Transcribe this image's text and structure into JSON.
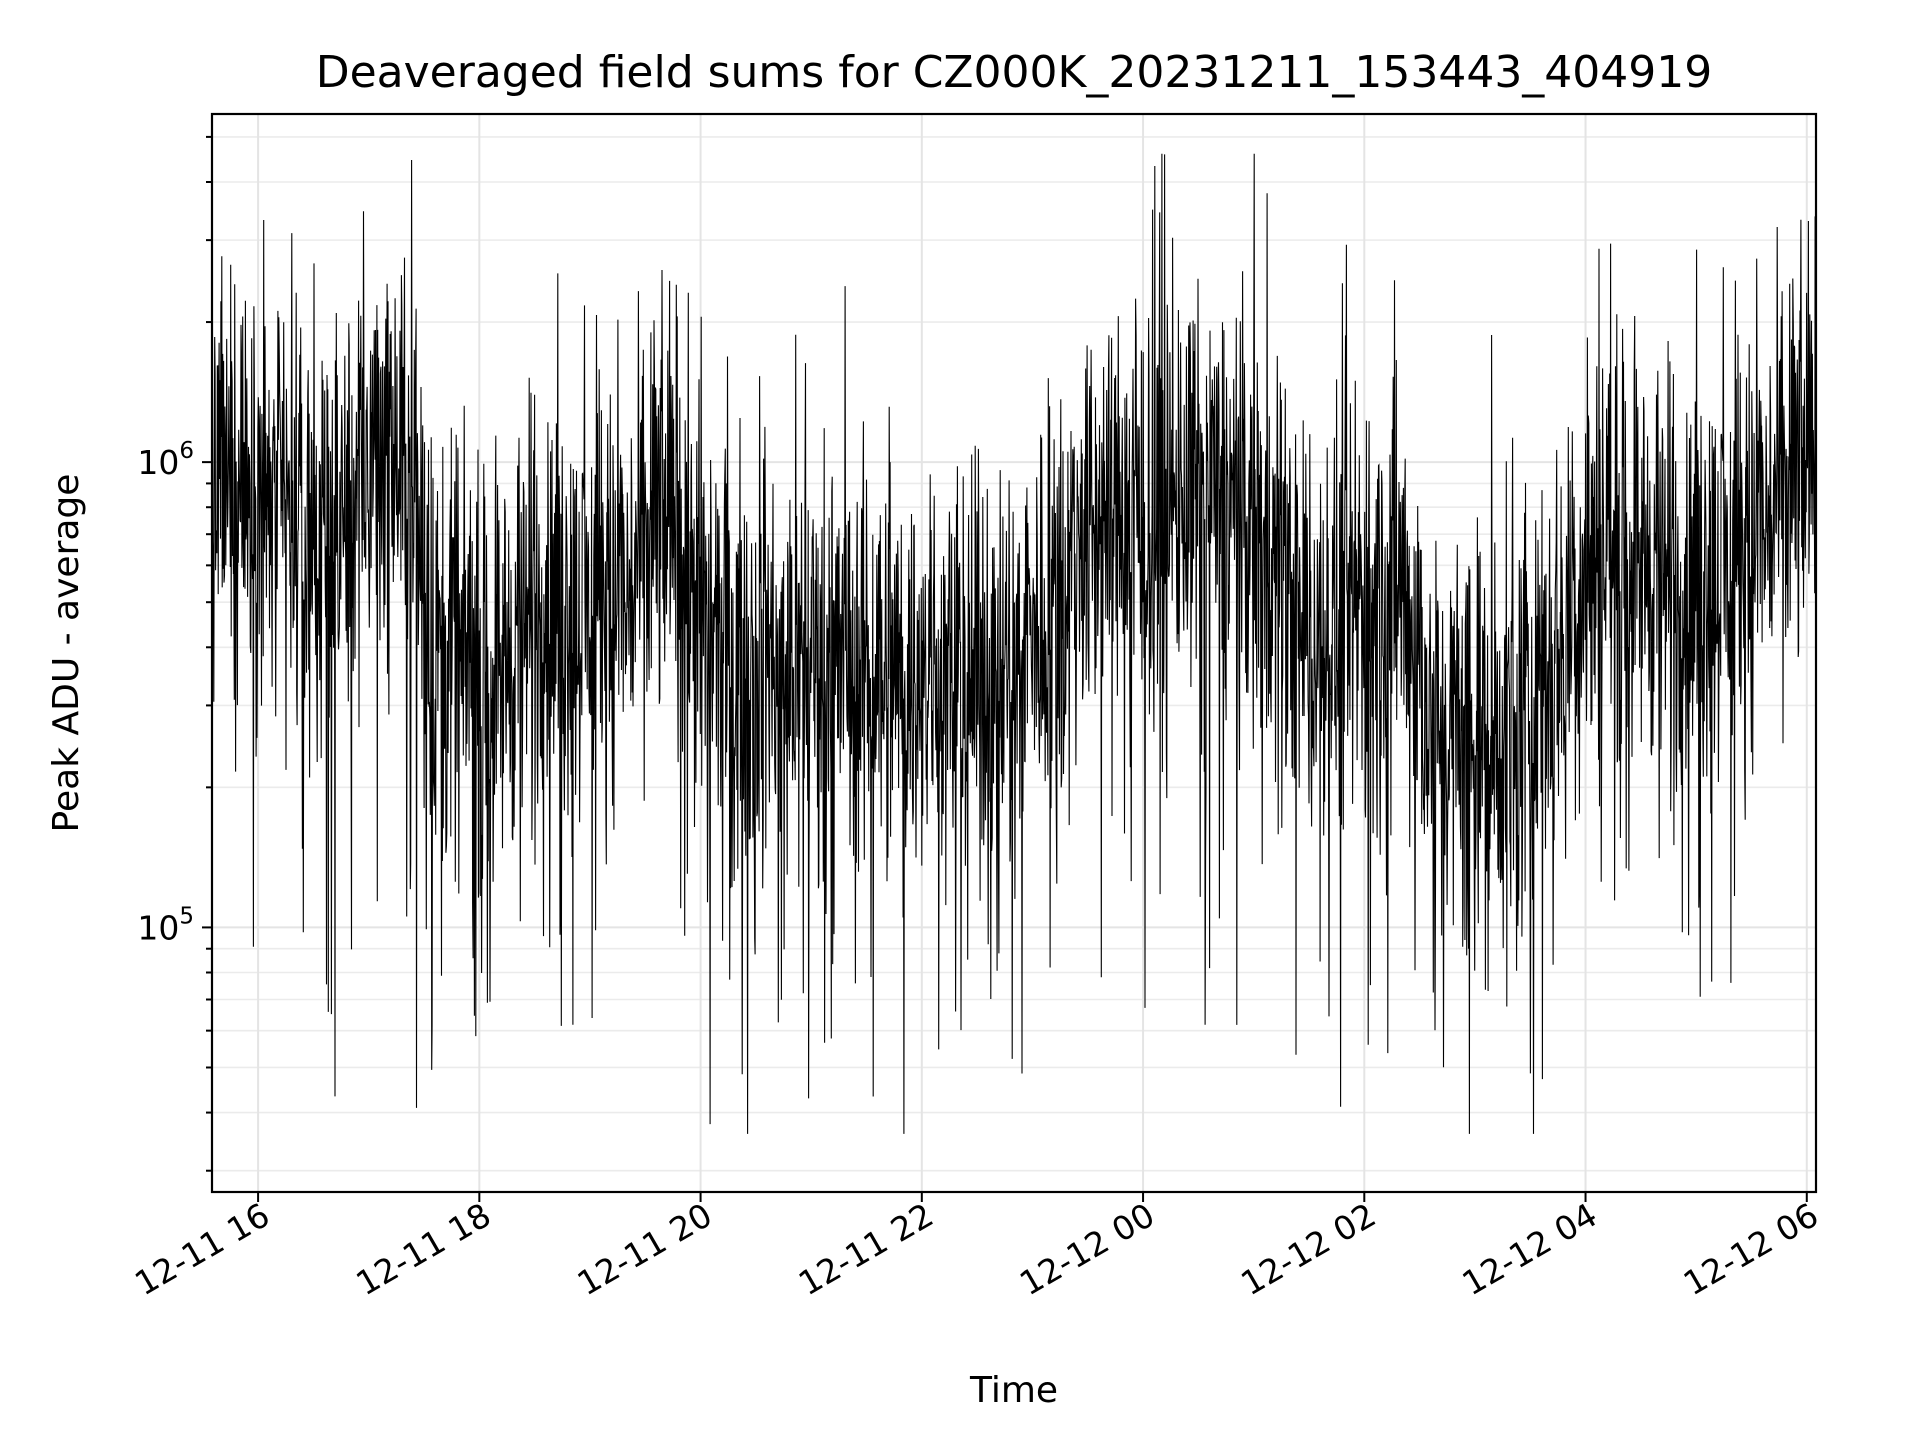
{
  "chart_data": {
    "type": "line",
    "title": "Deaveraged field sums for CZ000K_20231211_153443_404919",
    "xlabel": "Time",
    "ylabel": "Peak ADU - average",
    "xlim": [
      "2023-12-11 15:35",
      "2023-12-12 06:05"
    ],
    "ylim": [
      27000,
      5600000
    ],
    "yscale": "log",
    "x_ticks": [
      {
        "value": "2023-12-11 16:00",
        "label": "12-11 16"
      },
      {
        "value": "2023-12-11 18:00",
        "label": "12-11 18"
      },
      {
        "value": "2023-12-11 20:00",
        "label": "12-11 20"
      },
      {
        "value": "2023-12-11 22:00",
        "label": "12-11 22"
      },
      {
        "value": "2023-12-12 00:00",
        "label": "12-12 00"
      },
      {
        "value": "2023-12-12 02:00",
        "label": "12-12 02"
      },
      {
        "value": "2023-12-12 04:00",
        "label": "12-12 04"
      },
      {
        "value": "2023-12-12 06:00",
        "label": "12-12 06"
      }
    ],
    "y_ticks": [
      {
        "value": 100000,
        "base": "10",
        "exp": "5"
      },
      {
        "value": 1000000,
        "base": "10",
        "exp": "6"
      }
    ],
    "grid": true,
    "grid_minor": true,
    "line_color": "#000000",
    "series": [
      {
        "x": [
          "2023-12-11 15:35",
          "2023-12-11 15:50",
          "2023-12-11 16:05",
          "2023-12-11 16:20",
          "2023-12-11 16:35",
          "2023-12-11 16:50",
          "2023-12-11 17:05",
          "2023-12-11 17:20",
          "2023-12-11 17:35",
          "2023-12-11 17:50",
          "2023-12-11 18:05",
          "2023-12-11 18:20",
          "2023-12-11 18:35",
          "2023-12-11 18:50",
          "2023-12-11 19:05",
          "2023-12-11 19:20",
          "2023-12-11 19:35",
          "2023-12-11 19:50",
          "2023-12-11 20:05",
          "2023-12-11 20:20",
          "2023-12-11 20:35",
          "2023-12-11 20:50",
          "2023-12-11 21:05",
          "2023-12-11 21:20",
          "2023-12-11 21:35",
          "2023-12-11 21:50",
          "2023-12-11 22:05",
          "2023-12-11 22:20",
          "2023-12-11 22:35",
          "2023-12-11 22:50",
          "2023-12-11 23:05",
          "2023-12-11 23:20",
          "2023-12-11 23:35",
          "2023-12-11 23:50",
          "2023-12-12 00:05",
          "2023-12-12 00:20",
          "2023-12-12 00:35",
          "2023-12-12 00:50",
          "2023-12-12 01:05",
          "2023-12-12 01:20",
          "2023-12-12 01:35",
          "2023-12-12 01:50",
          "2023-12-12 02:05",
          "2023-12-12 02:20",
          "2023-12-12 02:35",
          "2023-12-12 02:50",
          "2023-12-12 03:05",
          "2023-12-12 03:20",
          "2023-12-12 03:35",
          "2023-12-12 03:50",
          "2023-12-12 04:05",
          "2023-12-12 04:20",
          "2023-12-12 04:35",
          "2023-12-12 04:50",
          "2023-12-12 05:05",
          "2023-12-12 05:20",
          "2023-12-12 05:35",
          "2023-12-12 05:50",
          "2023-12-12 06:05"
        ],
        "y": [
          900000,
          850000,
          800000,
          700000,
          600000,
          800000,
          1100000,
          1000000,
          400000,
          350000,
          330000,
          400000,
          500000,
          450000,
          520000,
          500000,
          750000,
          700000,
          400000,
          380000,
          360000,
          380000,
          400000,
          360000,
          380000,
          350000,
          340000,
          330000,
          350000,
          330000,
          450000,
          600000,
          750000,
          800000,
          750000,
          800000,
          850000,
          800000,
          700000,
          500000,
          400000,
          450000,
          500000,
          550000,
          280000,
          260000,
          240000,
          250000,
          300000,
          450000,
          700000,
          650000,
          600000,
          500000,
          550000,
          600000,
          700000,
          900000,
          1000000
        ]
      }
    ]
  }
}
